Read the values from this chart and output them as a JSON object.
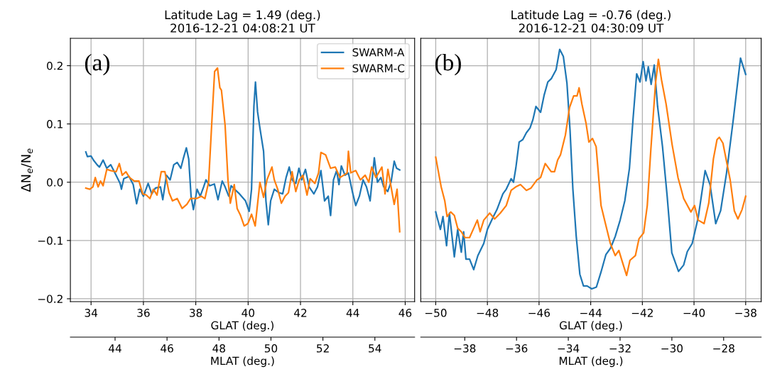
{
  "chart_data": [
    {
      "type": "line",
      "title": "Latitude Lag = 1.49 (deg.)\n2016-12-21 04:08:21 UT",
      "xlabel": "GLAT (deg.)",
      "ylabel": "ΔN$_{e}$/N$_{e}$",
      "x2label": "MLAT (deg.)",
      "xlim": [
        33.21,
        46.36
      ],
      "xticks": [
        34,
        36,
        38,
        40,
        42,
        44,
        46
      ],
      "ylim": [
        -0.205,
        0.247
      ],
      "yticks": [
        {
          "value": -0.2,
          "label": "−0.2"
        },
        {
          "value": -0.1,
          "label": "−0.1"
        },
        {
          "value": 0.0,
          "label": "0.0"
        },
        {
          "value": 0.1,
          "label": "0.1"
        },
        {
          "value": 0.2,
          "label": "0.2"
        }
      ],
      "x2lim": [
        42.28,
        55.53
      ],
      "x2ticks": [
        44,
        46,
        48,
        50,
        52,
        54
      ],
      "grid": true,
      "legend": "top right",
      "annotations": [
        "(a)"
      ],
      "series": [
        {
          "name": "SWARM-A",
          "color": "#1f77b4",
          "x": [
            33.8,
            33.86,
            34.0,
            34.09,
            34.23,
            34.32,
            34.46,
            34.6,
            34.75,
            34.91,
            35.11,
            35.16,
            35.25,
            35.45,
            35.61,
            35.74,
            35.86,
            36.0,
            36.18,
            36.32,
            36.46,
            36.65,
            36.74,
            36.88,
            37.02,
            37.16,
            37.29,
            37.43,
            37.52,
            37.64,
            37.73,
            37.82,
            37.91,
            38.05,
            38.17,
            38.3,
            38.39,
            38.53,
            38.71,
            38.85,
            39.01,
            39.12,
            39.26,
            39.35,
            39.48,
            39.67,
            39.9,
            40.04,
            40.13,
            40.22,
            40.28,
            40.36,
            40.45,
            40.59,
            40.68,
            40.77,
            40.86,
            41.0,
            41.18,
            41.32,
            41.45,
            41.57,
            41.68,
            41.82,
            41.94,
            42.05,
            42.19,
            42.33,
            42.51,
            42.65,
            42.78,
            42.92,
            43.06,
            43.15,
            43.26,
            43.38,
            43.47,
            43.56,
            43.7,
            43.83,
            43.98,
            44.11,
            44.25,
            44.39,
            44.52,
            44.66,
            44.82,
            44.94,
            45.07,
            45.18,
            45.33,
            45.46,
            45.58,
            45.67,
            45.79
          ],
          "values": [
            0.052,
            0.044,
            0.045,
            0.038,
            0.03,
            0.026,
            0.038,
            0.024,
            0.03,
            0.016,
            -0.002,
            -0.012,
            0.006,
            0.01,
            -0.004,
            -0.037,
            -0.012,
            -0.024,
            -0.002,
            -0.02,
            -0.01,
            -0.008,
            -0.03,
            0.012,
            0.004,
            0.03,
            0.034,
            0.024,
            0.04,
            0.059,
            0.04,
            -0.024,
            -0.047,
            -0.012,
            -0.024,
            -0.008,
            0.004,
            -0.006,
            -0.003,
            -0.03,
            0.002,
            -0.008,
            -0.024,
            -0.006,
            -0.012,
            -0.02,
            -0.032,
            -0.05,
            -0.012,
            0.13,
            0.172,
            0.121,
            0.093,
            0.053,
            -0.032,
            -0.073,
            -0.032,
            -0.012,
            -0.018,
            -0.02,
            0.008,
            0.026,
            0.004,
            -0.002,
            0.024,
            0.004,
            0.022,
            -0.008,
            -0.02,
            -0.008,
            0.02,
            -0.032,
            -0.024,
            -0.057,
            0.004,
            0.02,
            -0.004,
            0.028,
            0.012,
            0.016,
            -0.016,
            -0.04,
            -0.024,
            0.004,
            -0.008,
            -0.032,
            0.042,
            0.0,
            0.008,
            -0.008,
            -0.016,
            0.0,
            0.036,
            0.024,
            0.021
          ]
        },
        {
          "name": "SWARM-C",
          "color": "#ff7f0e",
          "x": [
            33.8,
            33.95,
            34.07,
            34.16,
            34.27,
            34.36,
            34.46,
            34.6,
            34.75,
            34.96,
            35.08,
            35.19,
            35.33,
            35.47,
            35.65,
            35.83,
            35.97,
            36.11,
            36.25,
            36.38,
            36.52,
            36.68,
            36.82,
            36.98,
            37.11,
            37.29,
            37.48,
            37.66,
            37.8,
            38.03,
            38.21,
            38.35,
            38.49,
            38.62,
            38.72,
            38.83,
            38.92,
            38.98,
            39.12,
            39.23,
            39.32,
            39.47,
            39.58,
            39.71,
            39.85,
            39.99,
            40.13,
            40.27,
            40.45,
            40.59,
            40.72,
            40.91,
            41.0,
            41.13,
            41.27,
            41.41,
            41.54,
            41.68,
            41.82,
            41.95,
            42.09,
            42.25,
            42.37,
            42.55,
            42.69,
            42.78,
            42.96,
            43.15,
            43.33,
            43.51,
            43.65,
            43.78,
            43.83,
            43.92,
            44.11,
            44.29,
            44.47,
            44.61,
            44.72,
            44.88,
            45.11,
            45.23,
            45.34,
            45.46,
            45.58,
            45.69,
            45.79
          ],
          "values": [
            -0.01,
            -0.012,
            -0.008,
            0.008,
            -0.008,
            0.002,
            -0.006,
            0.022,
            0.02,
            0.018,
            0.032,
            0.012,
            0.018,
            0.008,
            0.002,
            0.002,
            -0.02,
            -0.022,
            -0.028,
            -0.012,
            -0.022,
            0.018,
            0.018,
            -0.018,
            -0.032,
            -0.028,
            -0.045,
            -0.038,
            -0.028,
            -0.028,
            -0.024,
            -0.028,
            0.0,
            0.109,
            0.19,
            0.196,
            0.162,
            0.158,
            0.098,
            0.004,
            -0.036,
            -0.004,
            -0.045,
            -0.057,
            -0.075,
            -0.071,
            -0.055,
            -0.075,
            0.0,
            -0.026,
            0.004,
            0.026,
            0.004,
            -0.012,
            -0.036,
            -0.024,
            -0.018,
            0.018,
            -0.016,
            0.004,
            0.012,
            -0.022,
            0.006,
            -0.002,
            0.016,
            0.051,
            0.047,
            0.024,
            0.026,
            0.008,
            0.012,
            0.016,
            0.053,
            0.016,
            0.02,
            0.004,
            0.012,
            0.0,
            0.026,
            0.008,
            0.026,
            -0.02,
            0.022,
            -0.008,
            -0.038,
            -0.012,
            -0.085
          ]
        }
      ]
    },
    {
      "type": "line",
      "title": "Latitude Lag = -0.76 (deg.)\n2016-12-21 04:30:09 UT",
      "xlabel": "GLAT (deg.)",
      "x2label": "MLAT (deg.)",
      "xlim": [
        -50.58,
        -37.4
      ],
      "xticks": [
        {
          "value": -50,
          "label": "−50"
        },
        {
          "value": -48,
          "label": "−48"
        },
        {
          "value": -46,
          "label": "−46"
        },
        {
          "value": -44,
          "label": "−44"
        },
        {
          "value": -42,
          "label": "−42"
        },
        {
          "value": -40,
          "label": "−40"
        },
        {
          "value": -38,
          "label": "−38"
        }
      ],
      "ylim": [
        -0.205,
        0.247
      ],
      "yticks": [
        -0.2,
        -0.1,
        0.0,
        0.1,
        0.2
      ],
      "tick_labels": "x",
      "x2lim": [
        -39.7,
        -26.55
      ],
      "x2ticks": [
        {
          "value": -38,
          "label": "−38"
        },
        {
          "value": -36,
          "label": "−36"
        },
        {
          "value": -34,
          "label": "−34"
        },
        {
          "value": -32,
          "label": "−32"
        },
        {
          "value": -30,
          "label": "−30"
        },
        {
          "value": -28,
          "label": "−28"
        }
      ],
      "grid": true,
      "annotations": [
        "(b)"
      ],
      "series": [
        {
          "color": "#1f77b4",
          "x": [
            -50,
            -49.93,
            -49.82,
            -49.72,
            -49.58,
            -49.47,
            -49.28,
            -49.15,
            -49.01,
            -48.92,
            -48.83,
            -48.69,
            -48.53,
            -48.37,
            -48.14,
            -48.0,
            -47.77,
            -47.63,
            -47.4,
            -47.27,
            -47.08,
            -46.99,
            -46.9,
            -46.77,
            -46.63,
            -46.49,
            -46.35,
            -46.24,
            -46.12,
            -45.94,
            -45.8,
            -45.66,
            -45.52,
            -45.34,
            -45.2,
            -45.06,
            -44.92,
            -44.8,
            -44.69,
            -44.56,
            -44.42,
            -44.28,
            -44.14,
            -43.96,
            -43.78,
            -43.6,
            -43.41,
            -43.23,
            -43.05,
            -42.86,
            -42.68,
            -42.5,
            -42.36,
            -42.22,
            -42.09,
            -41.97,
            -41.86,
            -41.77,
            -41.66,
            -41.54,
            -41.41,
            -41.22,
            -41.04,
            -40.86,
            -40.6,
            -40.4,
            -40.26,
            -40.07,
            -39.84,
            -39.57,
            -39.38,
            -39.16,
            -38.97,
            -38.74,
            -38.47,
            -38.2,
            -38.0
          ],
          "values": [
            -0.051,
            -0.063,
            -0.081,
            -0.059,
            -0.109,
            -0.053,
            -0.128,
            -0.081,
            -0.12,
            -0.085,
            -0.132,
            -0.132,
            -0.15,
            -0.126,
            -0.105,
            -0.081,
            -0.059,
            -0.047,
            -0.02,
            -0.012,
            0.006,
            0.0,
            0.024,
            0.069,
            0.073,
            0.085,
            0.093,
            0.107,
            0.13,
            0.12,
            0.15,
            0.172,
            0.178,
            0.193,
            0.228,
            0.216,
            0.17,
            0.089,
            -0.012,
            -0.093,
            -0.158,
            -0.178,
            -0.178,
            -0.183,
            -0.18,
            -0.154,
            -0.124,
            -0.113,
            -0.093,
            -0.065,
            -0.032,
            0.024,
            0.109,
            0.186,
            0.172,
            0.207,
            0.174,
            0.198,
            0.168,
            0.201,
            0.13,
            0.061,
            -0.024,
            -0.121,
            -0.153,
            -0.142,
            -0.119,
            -0.105,
            -0.061,
            0.02,
            -0.004,
            -0.071,
            -0.049,
            0.016,
            0.111,
            0.213,
            0.185
          ]
        },
        {
          "color": "#ff7f0e",
          "x": [
            -50,
            -49.79,
            -49.65,
            -49.56,
            -49.42,
            -49.28,
            -49.15,
            -49.01,
            -48.87,
            -48.69,
            -48.53,
            -48.39,
            -48.28,
            -48.14,
            -47.91,
            -47.72,
            -47.5,
            -47.27,
            -47.08,
            -46.9,
            -46.72,
            -46.49,
            -46.31,
            -46.08,
            -45.94,
            -45.76,
            -45.53,
            -45.4,
            -45.28,
            -45.17,
            -44.98,
            -44.82,
            -44.66,
            -44.53,
            -44.45,
            -44.34,
            -44.18,
            -44.07,
            -43.93,
            -43.79,
            -43.6,
            -43.44,
            -43.24,
            -43.05,
            -42.91,
            -42.78,
            -42.61,
            -42.48,
            -42.27,
            -42.13,
            -41.95,
            -41.81,
            -41.67,
            -41.49,
            -41.38,
            -41.26,
            -41.08,
            -40.85,
            -40.62,
            -40.4,
            -40.12,
            -39.98,
            -39.84,
            -39.61,
            -39.43,
            -39.25,
            -39.11,
            -39.02,
            -38.88,
            -38.6,
            -38.44,
            -38.3,
            -38.14,
            -38.0
          ],
          "values": [
            0.043,
            -0.008,
            -0.032,
            -0.059,
            -0.051,
            -0.057,
            -0.079,
            -0.085,
            -0.095,
            -0.095,
            -0.079,
            -0.065,
            -0.085,
            -0.065,
            -0.053,
            -0.063,
            -0.053,
            -0.04,
            -0.014,
            -0.008,
            -0.004,
            -0.014,
            -0.01,
            0.004,
            0.008,
            0.032,
            0.018,
            0.018,
            0.038,
            0.047,
            0.081,
            0.128,
            0.148,
            0.148,
            0.162,
            0.134,
            0.101,
            0.069,
            0.075,
            0.061,
            -0.04,
            -0.069,
            -0.105,
            -0.126,
            -0.117,
            -0.136,
            -0.16,
            -0.134,
            -0.126,
            -0.097,
            -0.087,
            -0.04,
            0.057,
            0.17,
            0.211,
            0.176,
            0.134,
            0.065,
            0.008,
            -0.028,
            -0.051,
            -0.04,
            -0.065,
            -0.071,
            -0.036,
            0.04,
            0.073,
            0.077,
            0.067,
            0.004,
            -0.049,
            -0.063,
            -0.047,
            -0.024
          ]
        }
      ]
    }
  ]
}
